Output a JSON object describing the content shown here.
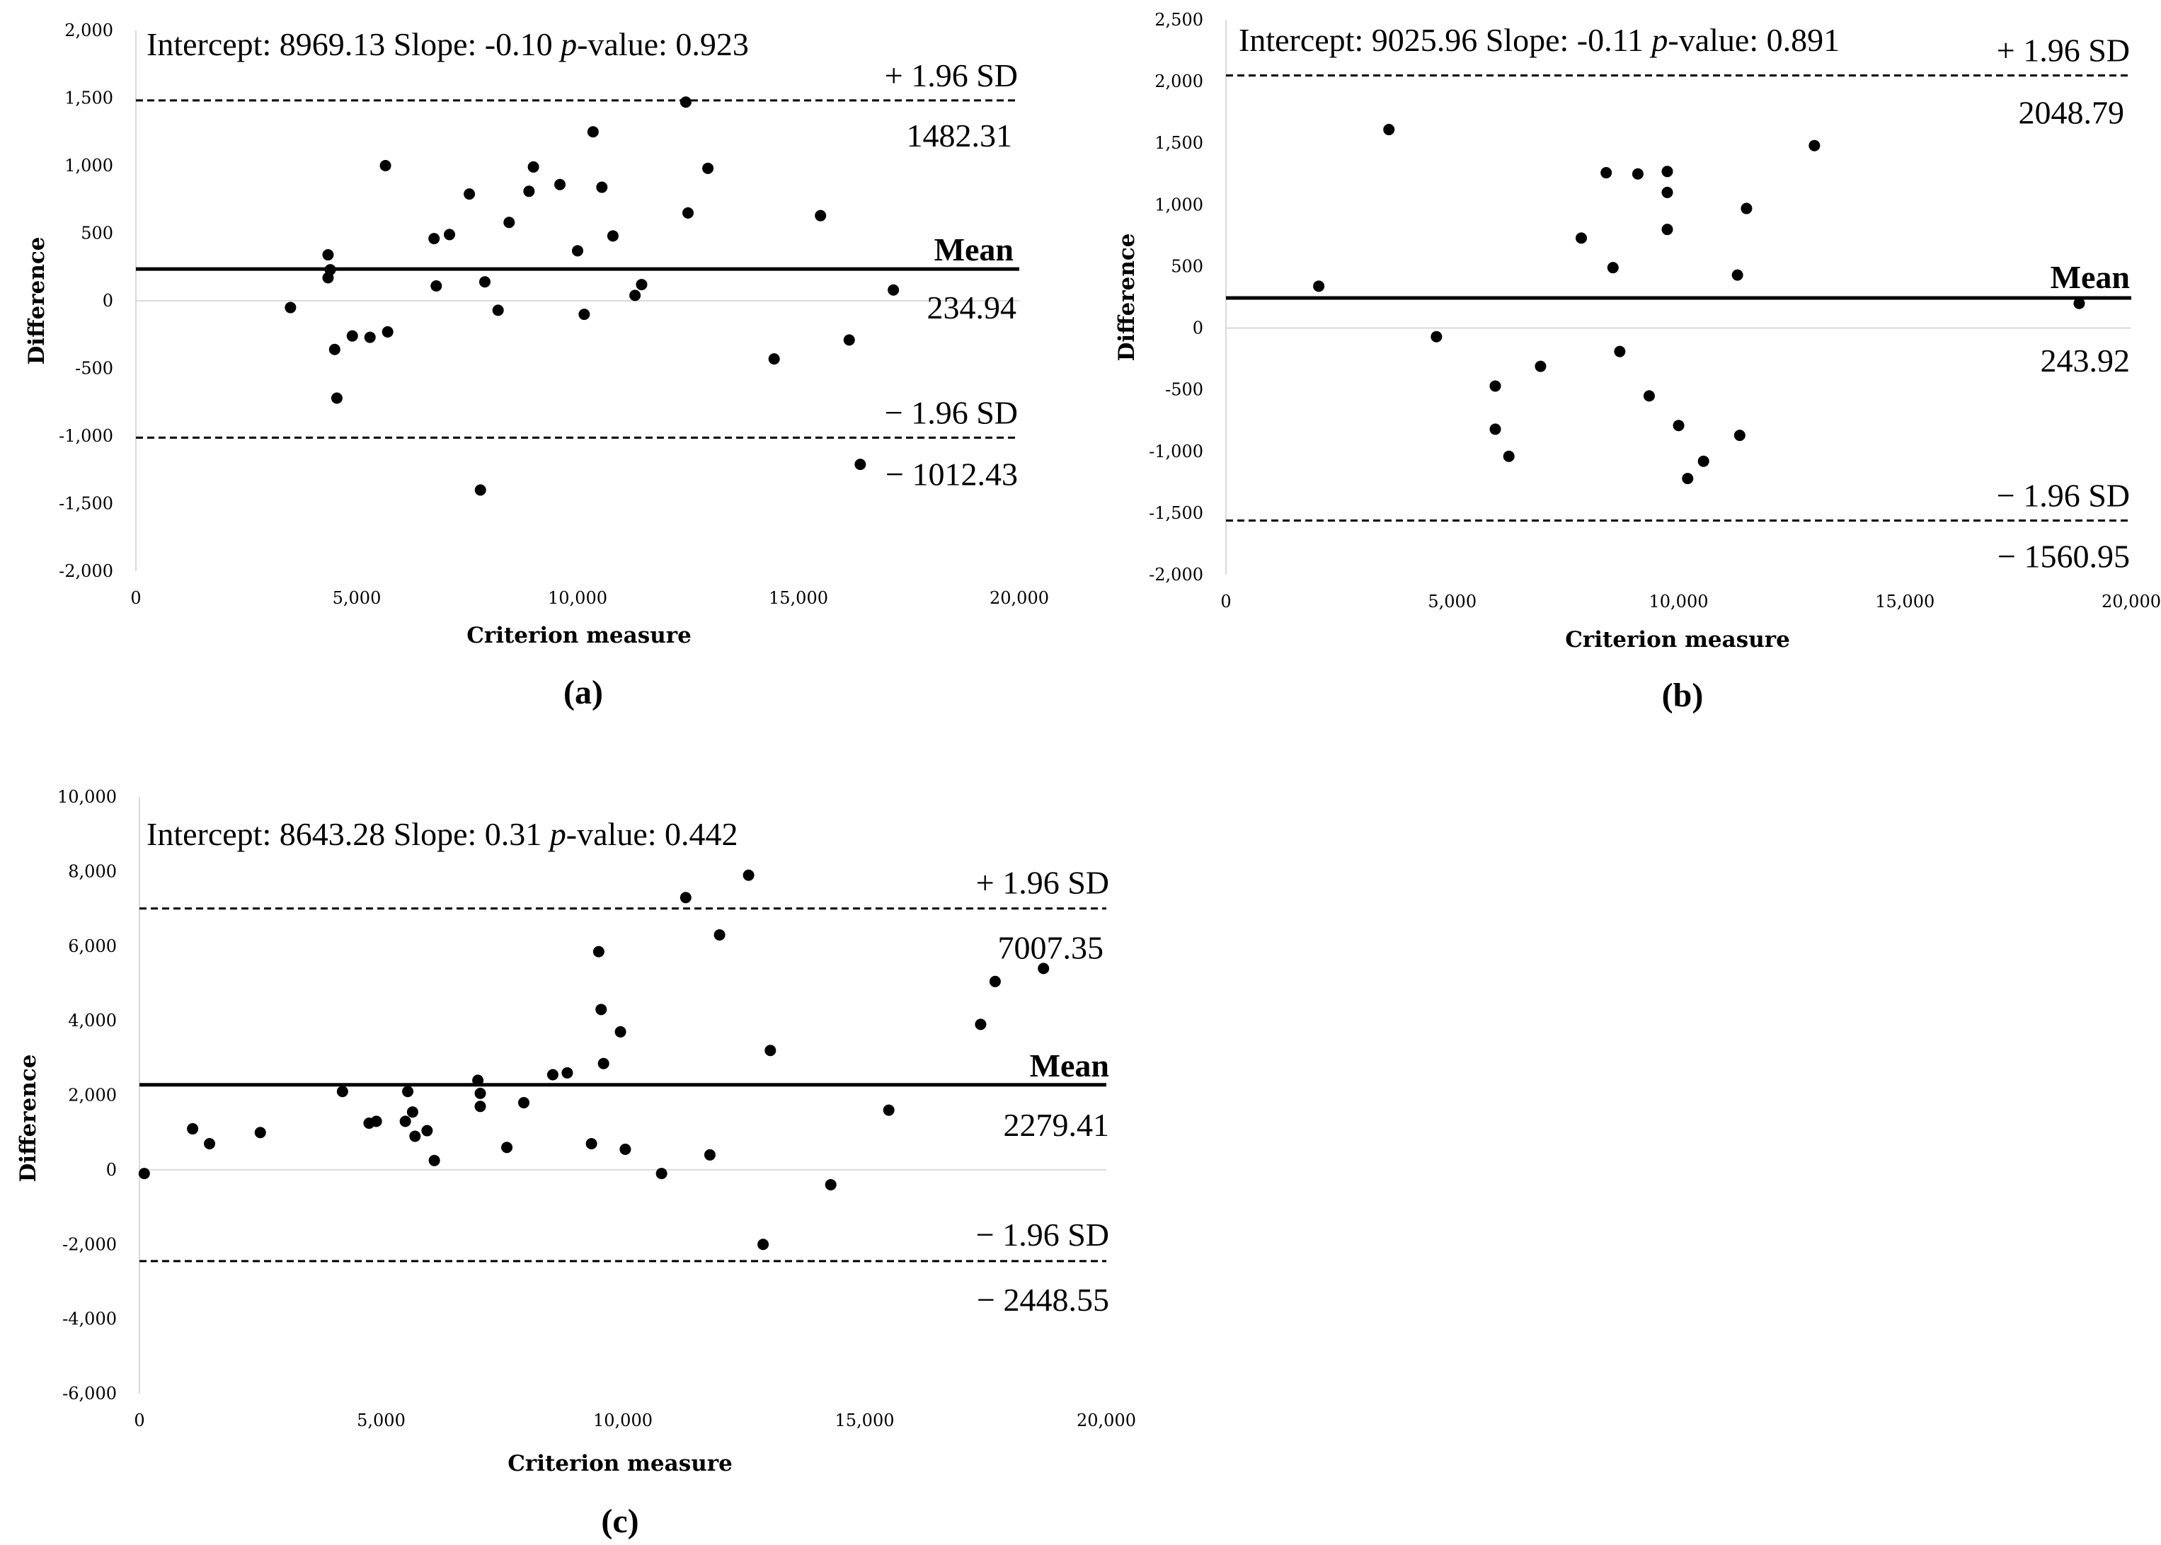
{
  "chart_data": [
    {
      "id": "a",
      "type": "scatter",
      "panel_label": "(a)",
      "stats": {
        "intercept_label": "Intercept: 8969.13 Slope: -0.10 ",
        "p_italic": "p",
        "p_label": "-value: 0.923"
      },
      "xlabel": "Criterion measure",
      "ylabel": "Difference",
      "xlim": [
        0,
        20000
      ],
      "ylim": [
        -2000,
        2000
      ],
      "x_ticks": [
        0,
        5000,
        10000,
        15000,
        20000
      ],
      "x_tick_labels": [
        "0",
        "5,000",
        "10,000",
        "15,000",
        "20,000"
      ],
      "y_ticks": [
        -2000,
        -1500,
        -1000,
        -500,
        0,
        500,
        1000,
        1500,
        2000
      ],
      "y_tick_labels": [
        "-2,000",
        "-1,500",
        "-1,000",
        "-500",
        "0",
        "500",
        "1,000",
        "1,500",
        "2,000"
      ],
      "mean": 234.94,
      "upper_loa": 1482.31,
      "lower_loa": -1012.43,
      "labels": {
        "upper": "+ 1.96 SD",
        "upper_value": "1482.31",
        "mean": "Mean",
        "mean_value": "234.94",
        "lower": "− 1.96 SD",
        "lower_value": "− 1012.43"
      },
      "points": [
        [
          3500,
          -50
        ],
        [
          4350,
          340
        ],
        [
          4350,
          170
        ],
        [
          4400,
          230
        ],
        [
          4500,
          -360
        ],
        [
          4550,
          -720
        ],
        [
          4900,
          -260
        ],
        [
          5300,
          -270
        ],
        [
          5650,
          1000
        ],
        [
          5700,
          -230
        ],
        [
          6750,
          460
        ],
        [
          6800,
          110
        ],
        [
          7100,
          490
        ],
        [
          7550,
          790
        ],
        [
          7800,
          -1400
        ],
        [
          7900,
          140
        ],
        [
          8200,
          -70
        ],
        [
          8450,
          580
        ],
        [
          8900,
          810
        ],
        [
          9000,
          990
        ],
        [
          9600,
          860
        ],
        [
          10000,
          370
        ],
        [
          10150,
          -100
        ],
        [
          10350,
          1250
        ],
        [
          10550,
          840
        ],
        [
          10800,
          480
        ],
        [
          11300,
          40
        ],
        [
          11450,
          120
        ],
        [
          12450,
          1470
        ],
        [
          12500,
          650
        ],
        [
          12950,
          980
        ],
        [
          14450,
          -430
        ],
        [
          15500,
          630
        ],
        [
          16150,
          -290
        ],
        [
          16400,
          -1210
        ],
        [
          17150,
          80
        ]
      ]
    },
    {
      "id": "b",
      "type": "scatter",
      "panel_label": "(b)",
      "stats": {
        "intercept_label": "Intercept: 9025.96 Slope: -0.11 ",
        "p_italic": "p",
        "p_label": "-value: 0.891"
      },
      "xlabel": "Criterion measure",
      "ylabel": "Difference",
      "xlim": [
        0,
        20000
      ],
      "ylim": [
        -2000,
        2500
      ],
      "x_ticks": [
        0,
        5000,
        10000,
        15000,
        20000
      ],
      "x_tick_labels": [
        "0",
        "5,000",
        "10,000",
        "15,000",
        "20,000"
      ],
      "y_ticks": [
        -2000,
        -1500,
        -1000,
        -500,
        0,
        500,
        1000,
        1500,
        2000,
        2500
      ],
      "y_tick_labels": [
        "-2,000",
        "-1,500",
        "-1,000",
        "-500",
        "0",
        "500",
        "1,000",
        "1,500",
        "2,000",
        "2,500"
      ],
      "mean": 243.92,
      "upper_loa": 2048.79,
      "lower_loa": -1560.95,
      "labels": {
        "upper": "+ 1.96 SD",
        "upper_value": "2048.79",
        "mean": "Mean",
        "mean_value": "243.92",
        "lower": "− 1.96 SD",
        "lower_value": "− 1560.95"
      },
      "points": [
        [
          2050,
          340
        ],
        [
          3600,
          1610
        ],
        [
          4650,
          -70
        ],
        [
          5950,
          -470
        ],
        [
          5950,
          -820
        ],
        [
          6250,
          -1040
        ],
        [
          6950,
          -310
        ],
        [
          7850,
          730
        ],
        [
          8400,
          1260
        ],
        [
          8550,
          490
        ],
        [
          8700,
          -190
        ],
        [
          9100,
          1250
        ],
        [
          9350,
          -550
        ],
        [
          9750,
          1270
        ],
        [
          9750,
          1100
        ],
        [
          9750,
          800
        ],
        [
          10000,
          -790
        ],
        [
          10200,
          -1220
        ],
        [
          10550,
          -1080
        ],
        [
          11300,
          430
        ],
        [
          11350,
          -870
        ],
        [
          11500,
          970
        ],
        [
          13000,
          1480
        ],
        [
          18850,
          200
        ]
      ]
    },
    {
      "id": "c",
      "type": "scatter",
      "panel_label": "(c)",
      "stats": {
        "intercept_label": "Intercept: 8643.28 Slope: 0.31 ",
        "p_italic": "p",
        "p_label": "-value: 0.442"
      },
      "xlabel": "Criterion measure",
      "ylabel": "Difference",
      "xlim": [
        0,
        20000
      ],
      "ylim": [
        -6000,
        10000
      ],
      "x_ticks": [
        0,
        5000,
        10000,
        15000,
        20000
      ],
      "x_tick_labels": [
        "0",
        "5,000",
        "10,000",
        "15,000",
        "20,000"
      ],
      "y_ticks": [
        -6000,
        -4000,
        -2000,
        0,
        2000,
        4000,
        6000,
        8000,
        10000
      ],
      "y_tick_labels": [
        "-6,000",
        "-4,000",
        "-2,000",
        "0",
        "2,000",
        "4,000",
        "6,000",
        "8,000",
        "10,000"
      ],
      "mean": 2279.41,
      "upper_loa": 7007.35,
      "lower_loa": -2448.55,
      "labels": {
        "upper": "+ 1.96 SD",
        "upper_value": "7007.35",
        "mean": "Mean",
        "mean_value": "2279.41",
        "lower": "− 1.96 SD",
        "lower_value": "− 2448.55"
      },
      "points": [
        [
          100,
          -100
        ],
        [
          1100,
          1100
        ],
        [
          1450,
          700
        ],
        [
          2500,
          1000
        ],
        [
          4200,
          2100
        ],
        [
          4750,
          1250
        ],
        [
          4900,
          1300
        ],
        [
          5500,
          1300
        ],
        [
          5550,
          2100
        ],
        [
          5650,
          1550
        ],
        [
          5700,
          900
        ],
        [
          5950,
          1050
        ],
        [
          6100,
          250
        ],
        [
          7000,
          2400
        ],
        [
          7050,
          2050
        ],
        [
          7050,
          1700
        ],
        [
          7600,
          600
        ],
        [
          7950,
          1800
        ],
        [
          8550,
          2550
        ],
        [
          8850,
          2600
        ],
        [
          9350,
          700
        ],
        [
          9500,
          5850
        ],
        [
          9550,
          4300
        ],
        [
          9600,
          2850
        ],
        [
          9950,
          3700
        ],
        [
          10050,
          550
        ],
        [
          10800,
          -100
        ],
        [
          11300,
          7300
        ],
        [
          11800,
          400
        ],
        [
          12000,
          6300
        ],
        [
          12600,
          7900
        ],
        [
          12900,
          -2000
        ],
        [
          13050,
          3200
        ],
        [
          14300,
          -400
        ],
        [
          15500,
          1600
        ],
        [
          17400,
          3900
        ],
        [
          17700,
          5050
        ],
        [
          18700,
          5400
        ]
      ]
    }
  ]
}
